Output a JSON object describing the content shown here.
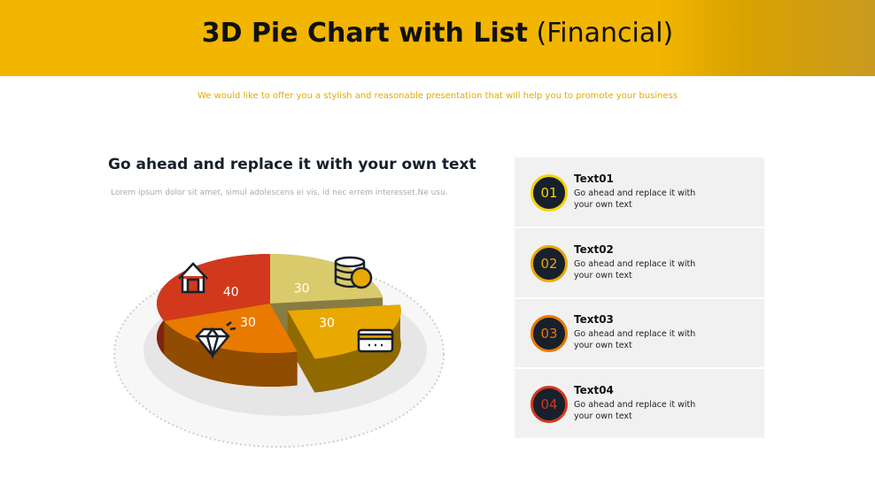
{
  "header": {
    "title": "3D Pie Chart with List",
    "title_suffix": "(Financial)",
    "subtitle": "We would like to offer you a stylish and reasonable presentation that will help you to promote your business"
  },
  "left": {
    "heading": "Go ahead and replace it with your own text",
    "body": "Lorem ipsum dolor sit amet, simul adolescens ei vis, id nec errem interesset.Ne usu."
  },
  "chart_data": {
    "type": "pie",
    "values": [
      40,
      30,
      30,
      30
    ],
    "colors": [
      "#d2391c",
      "#d9ca6c",
      "#e9a900",
      "#e97a00"
    ]
  },
  "list": [
    {
      "number": "01",
      "title": "Text01",
      "text": "Go ahead and replace it with your own text"
    },
    {
      "number": "02",
      "title": "Text02",
      "text": "Go ahead and replace it with your own text"
    },
    {
      "number": "03",
      "title": "Text03",
      "text": "Go ahead and replace it with your own text"
    },
    {
      "number": "04",
      "title": "Text04",
      "text": "Go ahead and replace it with your own text"
    }
  ]
}
